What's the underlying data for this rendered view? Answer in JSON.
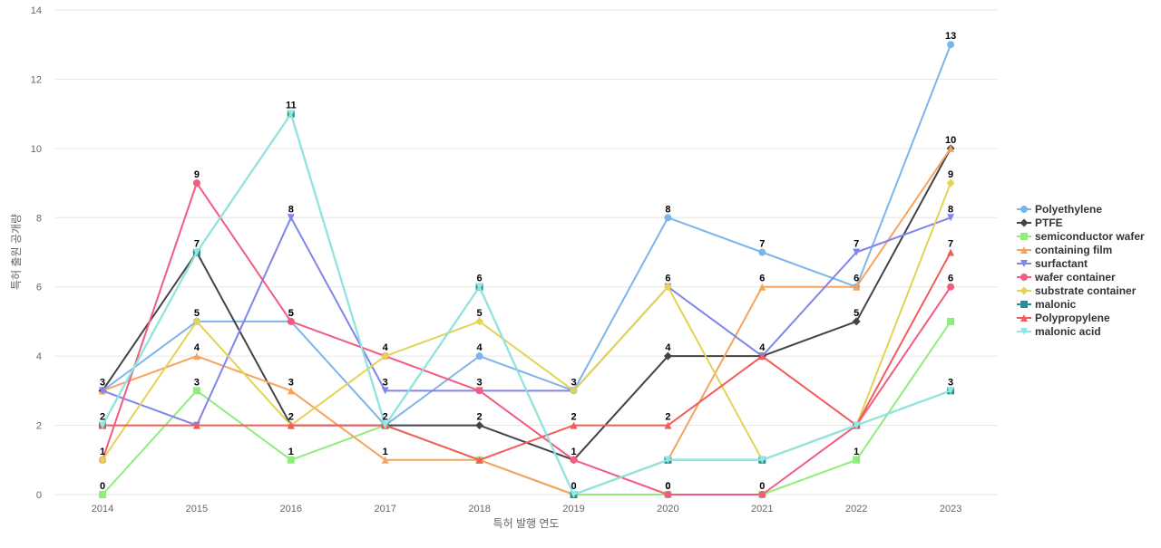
{
  "chart_data": {
    "type": "line",
    "title": "",
    "xlabel": "특허 발행 연도",
    "ylabel": "특허 출원 공개량",
    "ylim": [
      0,
      14
    ],
    "yticks": [
      0,
      2,
      4,
      6,
      8,
      10,
      12,
      14
    ],
    "grid": true,
    "legend_position": "right",
    "categories": [
      "2014",
      "2015",
      "2016",
      "2017",
      "2018",
      "2019",
      "2020",
      "2021",
      "2022",
      "2023"
    ],
    "series": [
      {
        "name": "Polyethylene",
        "color": "#7cb5ec",
        "marker": "circle",
        "values": [
          3,
          5,
          5,
          2,
          4,
          3,
          8,
          7,
          6,
          13
        ],
        "show_labels": [
          true,
          true,
          true,
          false,
          true,
          true,
          true,
          true,
          false,
          true
        ]
      },
      {
        "name": "PTFE",
        "color": "#434348",
        "marker": "diamond",
        "values": [
          3,
          7,
          2,
          2,
          2,
          1,
          4,
          4,
          5,
          10
        ],
        "show_labels": [
          false,
          false,
          false,
          false,
          true,
          false,
          true,
          true,
          true,
          false
        ]
      },
      {
        "name": "semiconductor wafer",
        "color": "#90ed7d",
        "marker": "square",
        "values": [
          0,
          3,
          1,
          2,
          1,
          0,
          0,
          0,
          1,
          5
        ],
        "show_labels": [
          true,
          true,
          true,
          false,
          false,
          false,
          true,
          true,
          true,
          false
        ]
      },
      {
        "name": "containing film",
        "color": "#f7a35c",
        "marker": "triangle",
        "values": [
          3,
          4,
          3,
          1,
          1,
          0,
          1,
          6,
          6,
          10
        ],
        "show_labels": [
          false,
          true,
          true,
          true,
          false,
          false,
          false,
          true,
          true,
          true
        ]
      },
      {
        "name": "surfactant",
        "color": "#8085e9",
        "marker": "triangle-down",
        "values": [
          3,
          2,
          8,
          3,
          3,
          3,
          6,
          4,
          7,
          8
        ],
        "show_labels": [
          false,
          false,
          true,
          true,
          true,
          false,
          false,
          false,
          true,
          true
        ]
      },
      {
        "name": "wafer container",
        "color": "#f15c80",
        "marker": "circle",
        "values": [
          1,
          9,
          5,
          4,
          3,
          1,
          0,
          0,
          2,
          6
        ],
        "show_labels": [
          true,
          true,
          true,
          false,
          false,
          true,
          true,
          false,
          false,
          true
        ]
      },
      {
        "name": "substrate container",
        "color": "#e4d354",
        "marker": "diamond",
        "values": [
          1,
          5,
          2,
          4,
          5,
          3,
          6,
          1,
          2,
          9
        ],
        "show_labels": [
          false,
          false,
          false,
          true,
          true,
          false,
          true,
          false,
          false,
          true
        ]
      },
      {
        "name": "malonic",
        "color": "#2b908f",
        "marker": "square",
        "values": [
          2,
          7,
          11,
          2,
          6,
          0,
          1,
          1,
          2,
          3
        ],
        "show_labels": [
          false,
          false,
          false,
          false,
          false,
          false,
          false,
          false,
          false,
          false
        ]
      },
      {
        "name": "Polypropylene",
        "color": "#f45b5b",
        "marker": "triangle",
        "values": [
          2,
          2,
          2,
          2,
          1,
          2,
          2,
          4,
          2,
          7
        ],
        "show_labels": [
          true,
          false,
          true,
          true,
          false,
          true,
          true,
          false,
          false,
          true
        ]
      },
      {
        "name": "malonic acid",
        "color": "#91e8e1",
        "marker": "triangle-down",
        "values": [
          2,
          7,
          11,
          2,
          6,
          0,
          1,
          1,
          2,
          3
        ],
        "show_labels": [
          false,
          true,
          true,
          false,
          true,
          true,
          false,
          false,
          false,
          true
        ]
      }
    ]
  }
}
